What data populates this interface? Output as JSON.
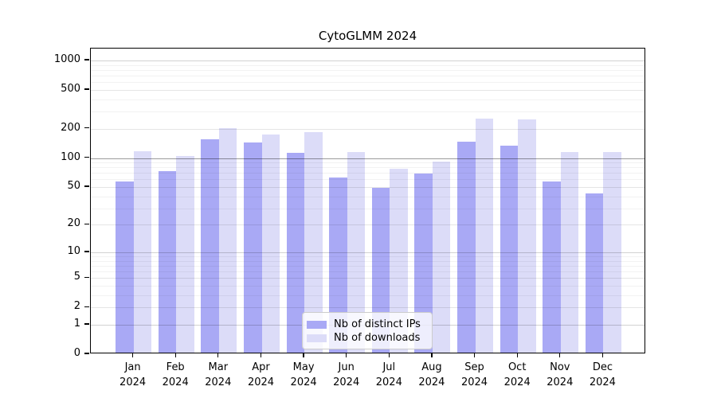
{
  "title": "CytoGLMM 2024",
  "chart_data": {
    "type": "bar",
    "title": "CytoGLMM 2024",
    "categories": [
      "Jan 2024",
      "Feb 2024",
      "Mar 2024",
      "Apr 2024",
      "May 2024",
      "Jun 2024",
      "Jul 2024",
      "Aug 2024",
      "Sep 2024",
      "Oct 2024",
      "Nov 2024",
      "Dec 2024"
    ],
    "series": [
      {
        "name": "Nb of distinct IPs",
        "color": "#a9a9f5",
        "values": [
          55,
          70,
          150,
          138,
          109,
          61,
          47,
          66,
          142,
          128,
          55,
          41
        ]
      },
      {
        "name": "Nb of downloads",
        "color": "#dcdcf8",
        "values": [
          113,
          101,
          195,
          168,
          179,
          110,
          75,
          89,
          245,
          240,
          112,
          110
        ]
      }
    ],
    "xlabel": "",
    "ylabel": "",
    "yscale": "log1p",
    "ylim": [
      0,
      1320
    ],
    "ytick_values": [
      0,
      1,
      2,
      5,
      10,
      20,
      50,
      100,
      200,
      500,
      1000
    ],
    "ytick_labels": [
      "0",
      "1",
      "2",
      "5",
      "10",
      "20",
      "50",
      "100",
      "200",
      "500",
      "1000"
    ],
    "grid": "horizontal",
    "legend_position": "lower-center",
    "colors": {
      "axis": "#000000",
      "grid_hundred": "rgba(0,0,0,0.39)",
      "grid_power10": "rgba(0,0,0,0.18)",
      "grid_labeled": "rgba(0,0,0,0.10)",
      "grid_minor": "rgba(0,0,0,0.05)"
    }
  }
}
